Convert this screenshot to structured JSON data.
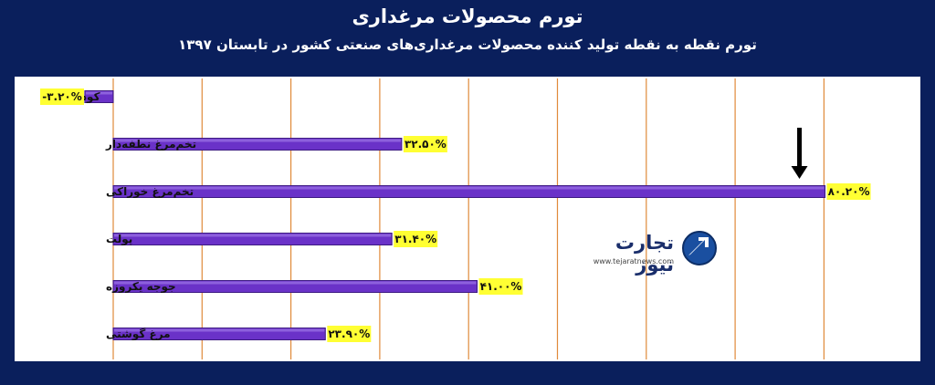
{
  "header": {
    "title": "تورم محصولات مرغداری",
    "subtitle": "تورم نقطه به نقطه تولید کننده محصولات مرغداری‌های صنعتی کشور در تابستان ۱۳۹۷"
  },
  "logo": {
    "name": "تجارت نیوز",
    "url": "www.tejaratnews.com"
  },
  "colors": {
    "bar": "#6a32c8",
    "bar_edge": "#3d1a82",
    "label_bg": "#ffff33",
    "grid": "#e08a3a",
    "background": "#0a1f5c"
  },
  "chart_data": {
    "type": "bar",
    "orientation": "horizontal",
    "categories": [
      "کود",
      "تخم‌مرغ نطفه‌دار",
      "تخم‌مرغ خوراکی",
      "پولت",
      "جوجه یکروزه",
      "مرغ گوشتی"
    ],
    "values": [
      -3.2,
      32.5,
      80.2,
      31.4,
      41.0,
      23.9
    ],
    "value_labels": [
      "-۳.۲۰%",
      "۳۲.۵۰%",
      "۸۰.۲۰%",
      "۳۱.۴۰%",
      "۴۱.۰۰%",
      "۲۳.۹۰%"
    ],
    "unit": "%",
    "xlim": [
      0,
      90
    ],
    "grid": true,
    "annotation": "down-arrow above the largest bar"
  }
}
